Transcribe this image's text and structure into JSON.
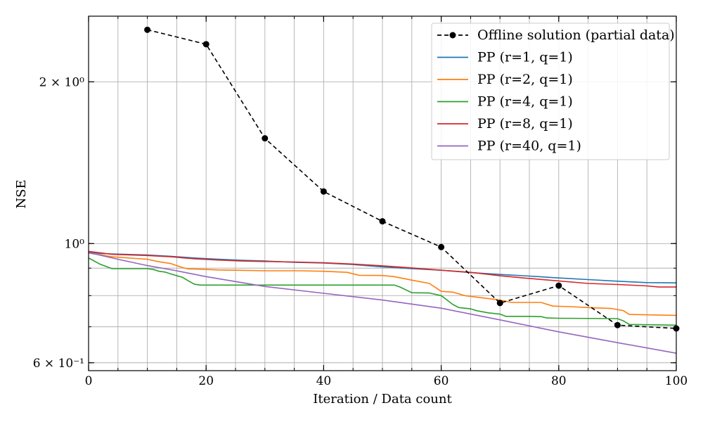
{
  "chart_data": {
    "type": "line",
    "xlabel": "Iteration / Data count",
    "ylabel": "NSE",
    "xlim": [
      0,
      100
    ],
    "ylim": [
      0.58,
      2.65
    ],
    "y_scale": "log",
    "grid": true,
    "legend_position": "top-right",
    "x_ticks": [
      {
        "value": 0,
        "label": "0"
      },
      {
        "value": 20,
        "label": "20"
      },
      {
        "value": 40,
        "label": "40"
      },
      {
        "value": 60,
        "label": "60"
      },
      {
        "value": 80,
        "label": "80"
      },
      {
        "value": 100,
        "label": "100"
      }
    ],
    "y_ticks": [
      {
        "value": 0.6,
        "label": "6 × 10⁻¹"
      },
      {
        "value": 1.0,
        "label": "10⁰"
      },
      {
        "value": 2.0,
        "label": "2 × 10⁰"
      }
    ],
    "series": [
      {
        "name": "Offline solution (partial data)",
        "color": "#000000",
        "style": "dashed-markers",
        "x": [
          10,
          20,
          30,
          40,
          50,
          60,
          70,
          80,
          90,
          100
        ],
        "y": [
          2.5,
          2.35,
          1.57,
          1.25,
          1.1,
          0.985,
          0.775,
          0.835,
          0.705,
          0.695
        ]
      },
      {
        "name": "PP (r=1, q=1)",
        "color": "#1f77b4",
        "style": "solid",
        "x": [
          0,
          2,
          6,
          10,
          14,
          18,
          22,
          26,
          30,
          35,
          40,
          45,
          50,
          55,
          60,
          65,
          70,
          75,
          80,
          85,
          90,
          95,
          100
        ],
        "y": [
          0.965,
          0.958,
          0.955,
          0.952,
          0.947,
          0.94,
          0.935,
          0.931,
          0.928,
          0.923,
          0.92,
          0.914,
          0.905,
          0.898,
          0.892,
          0.883,
          0.876,
          0.87,
          0.863,
          0.857,
          0.851,
          0.846,
          0.845
        ]
      },
      {
        "name": "PP (r=2, q=1)",
        "color": "#ff7f0e",
        "style": "solid",
        "x": [
          0,
          4,
          8,
          10,
          12,
          14,
          16,
          17,
          18,
          20,
          22,
          25,
          30,
          36,
          40,
          44,
          46,
          50,
          52,
          55,
          58,
          60,
          62,
          64,
          66,
          70,
          72,
          77,
          79,
          82,
          85,
          89,
          91,
          92,
          100
        ],
        "y": [
          0.96,
          0.945,
          0.938,
          0.935,
          0.925,
          0.918,
          0.902,
          0.897,
          0.897,
          0.895,
          0.893,
          0.892,
          0.89,
          0.89,
          0.888,
          0.884,
          0.873,
          0.872,
          0.868,
          0.855,
          0.843,
          0.815,
          0.812,
          0.8,
          0.795,
          0.785,
          0.777,
          0.777,
          0.765,
          0.763,
          0.76,
          0.757,
          0.75,
          0.738,
          0.735
        ]
      },
      {
        "name": "PP (r=4, q=1)",
        "color": "#2ca02c",
        "style": "solid",
        "x": [
          0,
          2,
          4,
          10,
          11,
          12,
          13,
          14,
          16,
          17,
          18,
          19,
          20,
          30,
          50,
          52,
          53,
          55,
          58,
          60,
          61,
          62,
          63,
          65,
          66,
          68,
          70,
          71,
          75,
          77,
          78,
          80,
          90,
          91,
          92,
          100
        ],
        "y": [
          0.94,
          0.915,
          0.898,
          0.898,
          0.895,
          0.888,
          0.885,
          0.878,
          0.865,
          0.852,
          0.84,
          0.837,
          0.837,
          0.837,
          0.837,
          0.837,
          0.83,
          0.81,
          0.809,
          0.8,
          0.785,
          0.77,
          0.76,
          0.756,
          0.75,
          0.743,
          0.739,
          0.732,
          0.732,
          0.731,
          0.727,
          0.726,
          0.725,
          0.718,
          0.707,
          0.705
        ]
      },
      {
        "name": "PP (r=8, q=1)",
        "color": "#d62728",
        "style": "solid",
        "x": [
          0,
          4,
          10,
          14,
          18,
          22,
          26,
          30,
          35,
          40,
          45,
          50,
          55,
          60,
          65,
          70,
          75,
          80,
          85,
          90,
          95,
          97,
          100
        ],
        "y": [
          0.967,
          0.955,
          0.95,
          0.945,
          0.937,
          0.932,
          0.928,
          0.926,
          0.924,
          0.921,
          0.916,
          0.909,
          0.901,
          0.892,
          0.884,
          0.871,
          0.861,
          0.852,
          0.843,
          0.839,
          0.834,
          0.83,
          0.83
        ]
      },
      {
        "name": "PP (r=40, q=1)",
        "color": "#9467bd",
        "style": "solid",
        "x": [
          0,
          5,
          10,
          15,
          20,
          30,
          40,
          50,
          60,
          70,
          80,
          90,
          100
        ],
        "y": [
          0.962,
          0.935,
          0.91,
          0.89,
          0.868,
          0.832,
          0.808,
          0.785,
          0.758,
          0.721,
          0.685,
          0.654,
          0.625
        ]
      }
    ]
  }
}
